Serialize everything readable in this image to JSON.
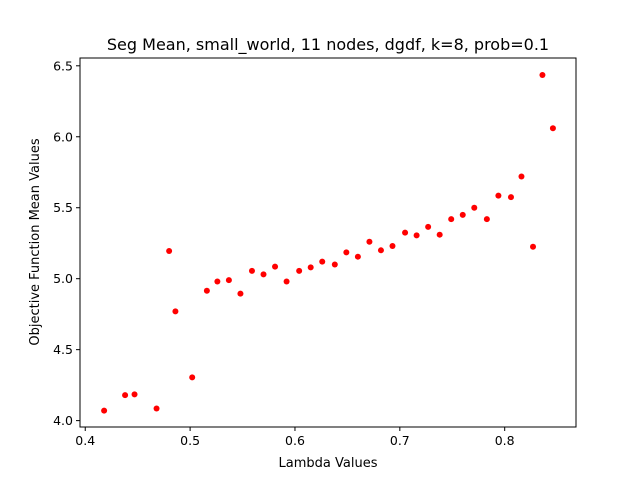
{
  "chart_data": {
    "type": "scatter",
    "title": "Seg Mean, small_world, 11 nodes, dgdf, k=8, prob=0.1",
    "xlabel": "Lambda Values",
    "ylabel": "Objective Function Mean Values",
    "xlim": [
      0.395,
      0.868
    ],
    "ylim": [
      3.955,
      6.555
    ],
    "xticks": [
      0.4,
      0.5,
      0.6,
      0.7,
      0.8
    ],
    "xtick_labels": [
      "0.4",
      "0.5",
      "0.6",
      "0.7",
      "0.8"
    ],
    "yticks": [
      4.0,
      4.5,
      5.0,
      5.5,
      6.0,
      6.5
    ],
    "ytick_labels": [
      "4.0",
      "4.5",
      "5.0",
      "5.5",
      "6.0",
      "6.5"
    ],
    "grid": false,
    "marker_color": "#ff0000",
    "points": [
      {
        "x": 0.418,
        "y": 4.07
      },
      {
        "x": 0.438,
        "y": 4.18
      },
      {
        "x": 0.447,
        "y": 4.185
      },
      {
        "x": 0.468,
        "y": 4.085
      },
      {
        "x": 0.48,
        "y": 5.195
      },
      {
        "x": 0.486,
        "y": 4.77
      },
      {
        "x": 0.502,
        "y": 4.305
      },
      {
        "x": 0.516,
        "y": 4.915
      },
      {
        "x": 0.526,
        "y": 4.98
      },
      {
        "x": 0.537,
        "y": 4.99
      },
      {
        "x": 0.548,
        "y": 4.895
      },
      {
        "x": 0.559,
        "y": 5.055
      },
      {
        "x": 0.57,
        "y": 5.03
      },
      {
        "x": 0.581,
        "y": 5.085
      },
      {
        "x": 0.592,
        "y": 4.98
      },
      {
        "x": 0.604,
        "y": 5.055
      },
      {
        "x": 0.615,
        "y": 5.08
      },
      {
        "x": 0.626,
        "y": 5.12
      },
      {
        "x": 0.638,
        "y": 5.1
      },
      {
        "x": 0.649,
        "y": 5.185
      },
      {
        "x": 0.66,
        "y": 5.155
      },
      {
        "x": 0.671,
        "y": 5.26
      },
      {
        "x": 0.682,
        "y": 5.2
      },
      {
        "x": 0.693,
        "y": 5.23
      },
      {
        "x": 0.705,
        "y": 5.325
      },
      {
        "x": 0.716,
        "y": 5.305
      },
      {
        "x": 0.727,
        "y": 5.365
      },
      {
        "x": 0.738,
        "y": 5.31
      },
      {
        "x": 0.749,
        "y": 5.42
      },
      {
        "x": 0.76,
        "y": 5.45
      },
      {
        "x": 0.771,
        "y": 5.5
      },
      {
        "x": 0.783,
        "y": 5.42
      },
      {
        "x": 0.794,
        "y": 5.585
      },
      {
        "x": 0.806,
        "y": 5.575
      },
      {
        "x": 0.816,
        "y": 5.72
      },
      {
        "x": 0.827,
        "y": 5.225
      },
      {
        "x": 0.836,
        "y": 6.435
      },
      {
        "x": 0.846,
        "y": 6.06
      }
    ]
  }
}
